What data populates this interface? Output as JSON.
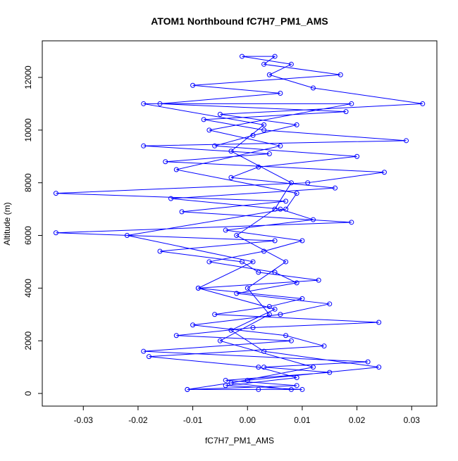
{
  "chart_data": {
    "type": "line",
    "marker": "circle",
    "title": "ATOM1 Northbound fC7H7_PM1_AMS",
    "x_label": "fC7H7_PM1_AMS",
    "y_label": "Altitude (m)",
    "color": "#0000ff",
    "x": [
      0.002,
      -0.011,
      0.009,
      -0.004,
      0.015,
      0.003,
      0.022,
      -0.019,
      0.008,
      -0.013,
      0.001,
      0.024,
      -0.006,
      0.004,
      0.01,
      -0.009,
      0.013,
      0.002,
      -0.001,
      -0.016,
      0.005,
      -0.035,
      0.019,
      -0.012,
      0.007,
      -0.035,
      0.011,
      0.025,
      -0.015,
      0.004,
      -0.019,
      0.029,
      0.003,
      -0.008,
      0.018,
      -0.016,
      0.006,
      -0.01,
      0.017,
      0.003,
      0.005,
      -0.001,
      0.008,
      0.004,
      0.012,
      0.032,
      -0.005,
      0.009,
      0.001,
      -0.006,
      0.02,
      0.002,
      -0.003,
      0.016,
      -0.014,
      0.006,
      0.012,
      -0.004,
      0.01,
      0.003,
      -0.007,
      0.005,
      0.009,
      -0.002,
      0.015,
      0.006,
      -0.01,
      0.007,
      0.014,
      -0.018,
      0.002,
      0.009,
      -0.004,
      0.01,
      -0.011,
      0.0,
      0.024,
      0.003,
      -0.003,
      0.005,
      -0.009,
      0.001,
      -0.022,
      0.007,
      0.009,
      -0.013,
      0.006,
      -0.007,
      0.019,
      -0.019,
      0.003,
      -0.003,
      0.008,
      0.005,
      -0.002,
      0.007,
      0.0,
      0.004,
      -0.005,
      0.012,
      -0.003,
      0.008
    ],
    "values": [
      150,
      150,
      300,
      500,
      800,
      1000,
      1200,
      1600,
      2000,
      2200,
      2500,
      2700,
      3000,
      3300,
      3600,
      4000,
      4300,
      4600,
      5000,
      5400,
      5800,
      6100,
      6500,
      6900,
      7300,
      7600,
      8000,
      8400,
      8800,
      9100,
      9400,
      9600,
      10000,
      10400,
      10700,
      11000,
      11400,
      11700,
      12100,
      12500,
      12800,
      12800,
      12500,
      12100,
      11600,
      11000,
      10600,
      10200,
      9800,
      9400,
      9000,
      8600,
      8200,
      7800,
      7400,
      7000,
      6600,
      6200,
      5800,
      5400,
      5000,
      4600,
      4200,
      3800,
      3400,
      3000,
      2600,
      2200,
      1800,
      1400,
      1000,
      600,
      300,
      150,
      150,
      500,
      1000,
      1600,
      2400,
      3200,
      4000,
      5000,
      6000,
      7000,
      7600,
      8500,
      9400,
      10000,
      11000,
      11000,
      10200,
      9200,
      8000,
      7000,
      6000,
      5000,
      4000,
      3000,
      2000,
      1000,
      400,
      150
    ],
    "xlim": [
      -0.0375,
      0.0346
    ],
    "ylim": [
      -480,
      13390
    ],
    "xticks": [
      -0.03,
      -0.02,
      -0.01,
      {
        "value": 0,
        "label": "0.00"
      },
      0.01,
      0.02,
      0.03
    ],
    "yticks": [
      0,
      2000,
      4000,
      6000,
      8000,
      10000,
      12000
    ]
  }
}
